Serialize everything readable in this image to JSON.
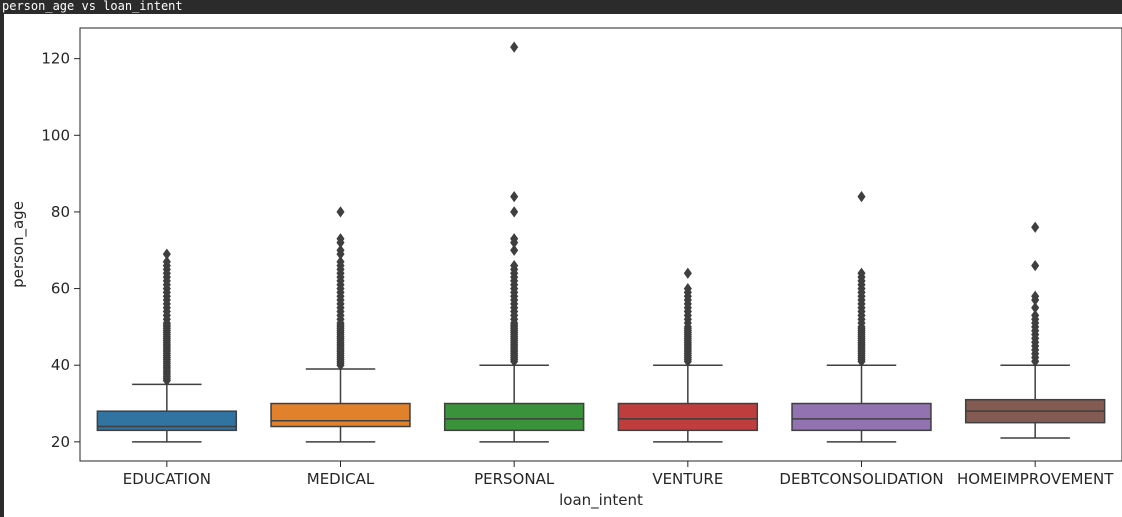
{
  "cell": {
    "title": "person_age vs loan_intent"
  },
  "chart_data": {
    "type": "box",
    "xlabel": "loan_intent",
    "ylabel": "person_age",
    "ylim": [
      15,
      128
    ],
    "yticks": [
      20,
      40,
      60,
      80,
      100,
      120
    ],
    "grid": false,
    "categories": [
      "EDUCATION",
      "MEDICAL",
      "PERSONAL",
      "VENTURE",
      "DEBTCONSOLIDATION",
      "HOMEIMPROVEMENT"
    ],
    "colors": [
      "#3274a1",
      "#e1812c",
      "#3a923a",
      "#c03d3e",
      "#9372b2",
      "#845b53"
    ],
    "boxes": [
      {
        "whisker_low": 20,
        "q1": 23,
        "median": 24,
        "q3": 28,
        "whisker_high": 35,
        "outliers": [
          36,
          36.5,
          37,
          37.5,
          38,
          38.5,
          39,
          39.5,
          40,
          40.5,
          41,
          41.5,
          42,
          42.5,
          43,
          43.5,
          44,
          44.5,
          45,
          45.5,
          46,
          46.5,
          47,
          47.5,
          48,
          48.5,
          49,
          49.5,
          50,
          50.5,
          51,
          52,
          53,
          54,
          55,
          56,
          57,
          58,
          59,
          60,
          61,
          62,
          63,
          64,
          65,
          66,
          67,
          69
        ]
      },
      {
        "whisker_low": 20,
        "q1": 24,
        "median": 25.5,
        "q3": 30,
        "whisker_high": 39,
        "outliers": [
          40,
          40.5,
          41,
          41.5,
          42,
          42.5,
          43,
          43.5,
          44,
          44.5,
          45,
          45.5,
          46,
          46.5,
          47,
          47.5,
          48,
          48.5,
          49,
          49.5,
          50,
          50.5,
          51,
          52,
          53,
          54,
          55,
          56,
          57,
          58,
          59,
          60,
          61,
          62,
          63,
          64,
          65,
          66,
          67,
          69,
          70,
          72,
          73,
          80
        ]
      },
      {
        "whisker_low": 20,
        "q1": 23,
        "median": 26,
        "q3": 30,
        "whisker_high": 40,
        "outliers": [
          41,
          41.5,
          42,
          42.5,
          43,
          43.5,
          44,
          44.5,
          45,
          45.5,
          46,
          46.5,
          47,
          47.5,
          48,
          48.5,
          49,
          49.5,
          50,
          50.5,
          51,
          52,
          53,
          54,
          55,
          56,
          57,
          58,
          59,
          60,
          61,
          62,
          63,
          64,
          65,
          66,
          70,
          72,
          73,
          80,
          84,
          123
        ]
      },
      {
        "whisker_low": 20,
        "q1": 23,
        "median": 26,
        "q3": 30,
        "whisker_high": 40,
        "outliers": [
          41,
          41.5,
          42,
          42.5,
          43,
          43.5,
          44,
          44.5,
          45,
          45.5,
          46,
          46.5,
          47,
          47.5,
          48,
          48.5,
          49,
          49.5,
          50,
          51,
          52,
          53,
          54,
          55,
          56,
          57,
          58,
          59,
          60,
          64
        ]
      },
      {
        "whisker_low": 20,
        "q1": 23,
        "median": 26,
        "q3": 30,
        "whisker_high": 40,
        "outliers": [
          41,
          41.5,
          42,
          42.5,
          43,
          43.5,
          44,
          44.5,
          45,
          45.5,
          46,
          46.5,
          47,
          47.5,
          48,
          48.5,
          49,
          49.5,
          50,
          51,
          52,
          53,
          54,
          55,
          56,
          57,
          58,
          59,
          60,
          61,
          62,
          63,
          64,
          84
        ]
      },
      {
        "whisker_low": 21,
        "q1": 25,
        "median": 28,
        "q3": 31,
        "whisker_high": 40,
        "outliers": [
          41,
          42,
          43,
          44,
          45,
          46,
          47,
          48,
          49,
          50,
          51,
          52,
          53,
          55,
          57,
          58,
          66,
          76
        ]
      }
    ]
  }
}
